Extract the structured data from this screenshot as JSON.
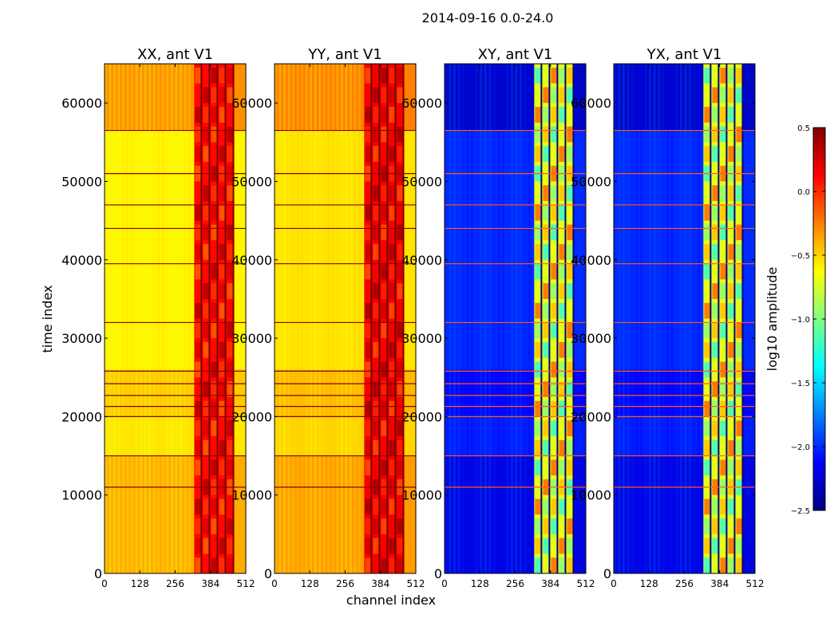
{
  "chart_data": {
    "type": "heatmap",
    "suptitle": "2014-09-16 0.0-24.0",
    "xlabel": "channel index",
    "ylabel": "time index",
    "xlim": [
      0,
      512
    ],
    "ylim": [
      0,
      65000
    ],
    "x_ticks": [
      "0",
      "128",
      "256",
      "384",
      "512"
    ],
    "y_ticks": [
      "0",
      "10000",
      "20000",
      "30000",
      "40000",
      "50000",
      "60000"
    ],
    "y_tick_values": [
      0,
      10000,
      20000,
      30000,
      40000,
      50000,
      60000
    ],
    "panels": [
      {
        "title": "XX, ant V1",
        "baseline_log_amplitude": -0.6,
        "band_log_amplitude": 0.1
      },
      {
        "title": "YY, ant V1",
        "baseline_log_amplitude": -0.55,
        "band_log_amplitude": 0.15
      },
      {
        "title": "XY, ant V1",
        "baseline_log_amplitude": -2.0,
        "band_log_amplitude": -0.7
      },
      {
        "title": "YX, ant V1",
        "baseline_log_amplitude": -2.0,
        "band_log_amplitude": -0.7
      }
    ],
    "band_channels": [
      [
        325,
        470
      ]
    ],
    "horizontal_event_times": [
      56500,
      51000,
      47000,
      44000,
      39500,
      32000,
      25800,
      24200,
      22700,
      21300,
      20000,
      15000,
      11000
    ],
    "colorbar": {
      "label": "log10 amplitude",
      "range": [
        -2.5,
        0.5
      ],
      "ticks": [
        "0.5",
        "0.0",
        "−0.5",
        "−1.0",
        "−1.5",
        "−2.0",
        "−2.5"
      ],
      "tick_values": [
        0.5,
        0.0,
        -0.5,
        -1.0,
        -1.5,
        -2.0,
        -2.5
      ],
      "colormap": "jet",
      "colors": [
        "#00007f",
        "#0000ff",
        "#007fff",
        "#00ffff",
        "#7fff7f",
        "#ffff00",
        "#ff7f00",
        "#ff0000",
        "#7f0000"
      ]
    }
  }
}
